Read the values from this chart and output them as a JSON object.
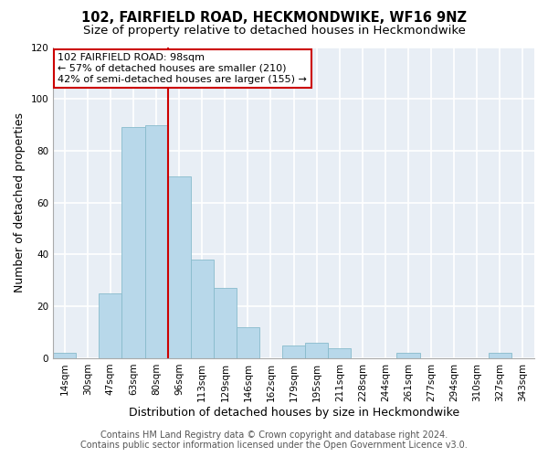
{
  "title": "102, FAIRFIELD ROAD, HECKMONDWIKE, WF16 9NZ",
  "subtitle": "Size of property relative to detached houses in Heckmondwike",
  "xlabel": "Distribution of detached houses by size in Heckmondwike",
  "ylabel": "Number of detached properties",
  "bar_labels": [
    "14sqm",
    "30sqm",
    "47sqm",
    "63sqm",
    "80sqm",
    "96sqm",
    "113sqm",
    "129sqm",
    "146sqm",
    "162sqm",
    "179sqm",
    "195sqm",
    "211sqm",
    "228sqm",
    "244sqm",
    "261sqm",
    "277sqm",
    "294sqm",
    "310sqm",
    "327sqm",
    "343sqm"
  ],
  "bar_values": [
    2,
    0,
    25,
    89,
    90,
    70,
    38,
    27,
    12,
    0,
    5,
    6,
    4,
    0,
    0,
    2,
    0,
    0,
    0,
    2,
    0
  ],
  "bar_color": "#b8d8ea",
  "bar_edge_color": "#88bbcc",
  "vline_x": 4.5,
  "vline_color": "#cc0000",
  "ylim": [
    0,
    120
  ],
  "yticks": [
    0,
    20,
    40,
    60,
    80,
    100,
    120
  ],
  "annotation_title": "102 FAIRFIELD ROAD: 98sqm",
  "annotation_line1": "← 57% of detached houses are smaller (210)",
  "annotation_line2": "42% of semi-detached houses are larger (155) →",
  "annotation_box_color": "#ffffff",
  "annotation_box_edge": "#cc0000",
  "footer1": "Contains HM Land Registry data © Crown copyright and database right 2024.",
  "footer2": "Contains public sector information licensed under the Open Government Licence v3.0.",
  "plot_bg_color": "#e8eef5",
  "fig_bg_color": "#ffffff",
  "grid_color": "#ffffff",
  "title_fontsize": 10.5,
  "subtitle_fontsize": 9.5,
  "axis_label_fontsize": 9,
  "tick_fontsize": 7.5,
  "footer_fontsize": 7,
  "ann_fontsize": 8
}
